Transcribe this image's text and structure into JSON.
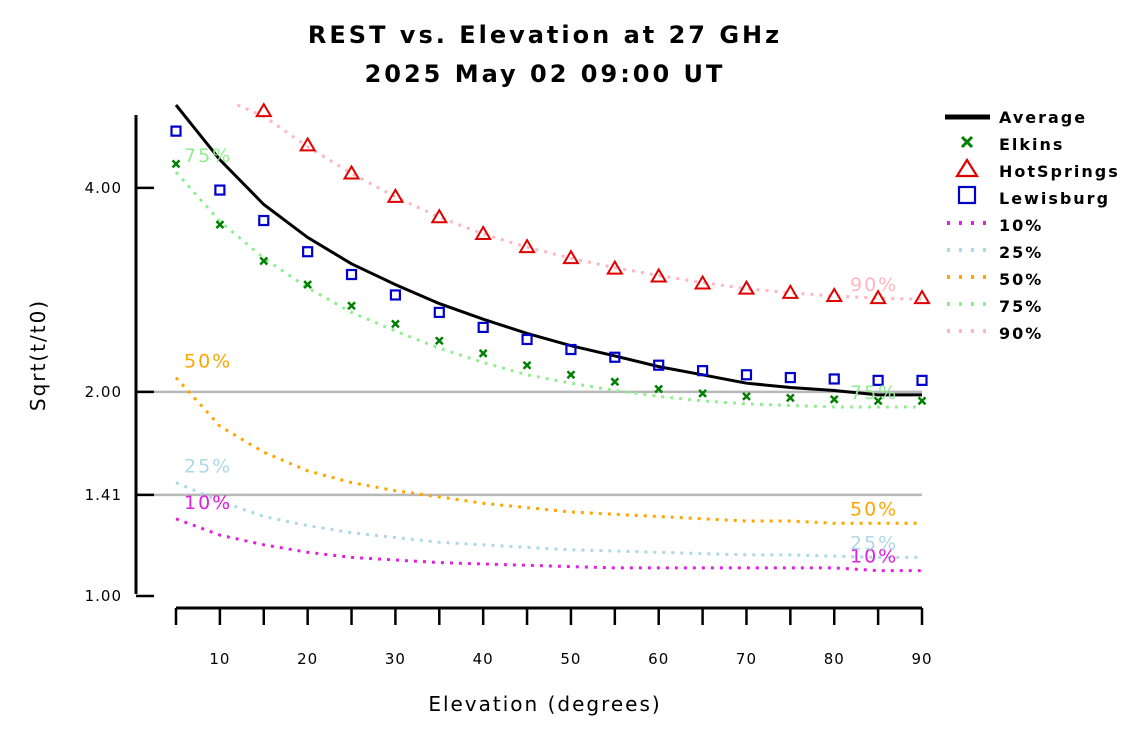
{
  "chart_data": {
    "type": "line",
    "title": "REST vs. Elevation at 27 GHz",
    "subtitle": "2025 May 02 09:00 UT",
    "xlabel": "Elevation (degrees)",
    "ylabel": "Sqrt(t/t0)",
    "xlim": [
      5,
      90
    ],
    "ylim": [
      1.0,
      5.3
    ],
    "y_scale": "log",
    "x_ticks": [
      10,
      20,
      30,
      40,
      50,
      60,
      70,
      80,
      90
    ],
    "y_ticks": [
      {
        "value": 1.0,
        "label": "1.00"
      },
      {
        "value": 1.41,
        "label": "1.41"
      },
      {
        "value": 2.0,
        "label": "2.00"
      },
      {
        "value": 4.0,
        "label": "4.00"
      }
    ],
    "reference_lines": [
      1.41,
      2.0
    ],
    "grid": false,
    "legend_placement": "right",
    "x": [
      5,
      10,
      15,
      20,
      25,
      30,
      35,
      40,
      45,
      50,
      55,
      60,
      65,
      70,
      75,
      80,
      85,
      90
    ],
    "series": [
      {
        "name": "Average",
        "style": "solid-line",
        "color": "#000000",
        "x": [
          5,
          10,
          15,
          20,
          25,
          30,
          35,
          40,
          45,
          50,
          55,
          60,
          65,
          70,
          75,
          80,
          85,
          90
        ],
        "values": [
          5.3,
          4.4,
          3.78,
          3.38,
          3.09,
          2.88,
          2.7,
          2.56,
          2.44,
          2.34,
          2.26,
          2.18,
          2.12,
          2.06,
          2.03,
          2.01,
          1.98,
          1.98
        ]
      },
      {
        "name": "Elkins",
        "style": "marker-x",
        "color": "#008000",
        "x": [
          5,
          10,
          15,
          20,
          25,
          30,
          35,
          40,
          45,
          50,
          55,
          60,
          65,
          70,
          75,
          80,
          85,
          90
        ],
        "values": [
          4.34,
          3.53,
          3.12,
          2.88,
          2.68,
          2.52,
          2.38,
          2.28,
          2.19,
          2.12,
          2.07,
          2.02,
          1.99,
          1.97,
          1.96,
          1.95,
          1.94,
          1.94
        ]
      },
      {
        "name": "HotSprings",
        "style": "marker-triangle",
        "color": "#e00000",
        "x": [
          15,
          20,
          25,
          30,
          35,
          40,
          45,
          50,
          55,
          60,
          65,
          70,
          75,
          80,
          85,
          90
        ],
        "values": [
          5.19,
          4.62,
          4.2,
          3.88,
          3.62,
          3.42,
          3.27,
          3.15,
          3.04,
          2.96,
          2.89,
          2.84,
          2.8,
          2.77,
          2.75,
          2.75
        ]
      },
      {
        "name": "Lewisburg",
        "style": "marker-square",
        "color": "#0000cc",
        "x": [
          5,
          10,
          15,
          20,
          25,
          30,
          35,
          40,
          45,
          50,
          55,
          60,
          65,
          70,
          75,
          80,
          85,
          90
        ],
        "values": [
          4.85,
          3.97,
          3.58,
          3.22,
          2.98,
          2.78,
          2.62,
          2.49,
          2.39,
          2.31,
          2.25,
          2.19,
          2.15,
          2.12,
          2.1,
          2.09,
          2.08,
          2.08
        ]
      },
      {
        "name": "10%",
        "style": "dotted-line",
        "color": "#e020e0",
        "label": "10%",
        "x": [
          5,
          10,
          15,
          20,
          25,
          30,
          35,
          40,
          45,
          50,
          55,
          60,
          65,
          70,
          75,
          80,
          85,
          90
        ],
        "values": [
          1.3,
          1.23,
          1.19,
          1.16,
          1.14,
          1.13,
          1.12,
          1.115,
          1.11,
          1.105,
          1.1,
          1.1,
          1.1,
          1.1,
          1.1,
          1.1,
          1.09,
          1.09
        ]
      },
      {
        "name": "25%",
        "style": "dotted-line",
        "color": "#add8e6",
        "label": "25%",
        "x": [
          5,
          10,
          15,
          20,
          25,
          30,
          35,
          40,
          45,
          50,
          55,
          60,
          65,
          70,
          75,
          80,
          85,
          90
        ],
        "values": [
          1.47,
          1.38,
          1.31,
          1.27,
          1.24,
          1.22,
          1.2,
          1.19,
          1.18,
          1.17,
          1.165,
          1.16,
          1.155,
          1.15,
          1.15,
          1.145,
          1.14,
          1.14
        ]
      },
      {
        "name": "50%",
        "style": "dotted-line",
        "color": "#ffa500",
        "label": "50%",
        "x": [
          5,
          10,
          15,
          20,
          25,
          30,
          35,
          40,
          45,
          50,
          55,
          60,
          65,
          70,
          75,
          80,
          85,
          90
        ],
        "values": [
          2.1,
          1.78,
          1.63,
          1.53,
          1.47,
          1.43,
          1.4,
          1.37,
          1.35,
          1.33,
          1.32,
          1.31,
          1.3,
          1.29,
          1.29,
          1.28,
          1.28,
          1.28
        ]
      },
      {
        "name": "75%",
        "style": "dotted-line",
        "color": "#90ee90",
        "label": "75%",
        "x": [
          5,
          10,
          15,
          20,
          25,
          30,
          35,
          40,
          45,
          50,
          55,
          60,
          65,
          70,
          75,
          80,
          85,
          90
        ],
        "values": [
          4.22,
          3.57,
          3.15,
          2.85,
          2.62,
          2.46,
          2.32,
          2.21,
          2.12,
          2.06,
          2.01,
          1.97,
          1.94,
          1.92,
          1.91,
          1.9,
          1.9,
          1.9
        ]
      },
      {
        "name": "90%",
        "style": "dotted-line",
        "color": "#ffb6c1",
        "label": "90%",
        "x": [
          12,
          15,
          20,
          25,
          30,
          35,
          40,
          45,
          50,
          55,
          60,
          65,
          70,
          75,
          80,
          85,
          90
        ],
        "values": [
          5.3,
          5.1,
          4.6,
          4.2,
          3.88,
          3.62,
          3.42,
          3.27,
          3.15,
          3.05,
          2.97,
          2.9,
          2.84,
          2.8,
          2.77,
          2.75,
          2.74
        ]
      }
    ],
    "legend": [
      "Average",
      "Elkins",
      "HotSprings",
      "Lewisburg",
      "10%",
      "25%",
      "50%",
      "75%",
      "90%"
    ]
  }
}
